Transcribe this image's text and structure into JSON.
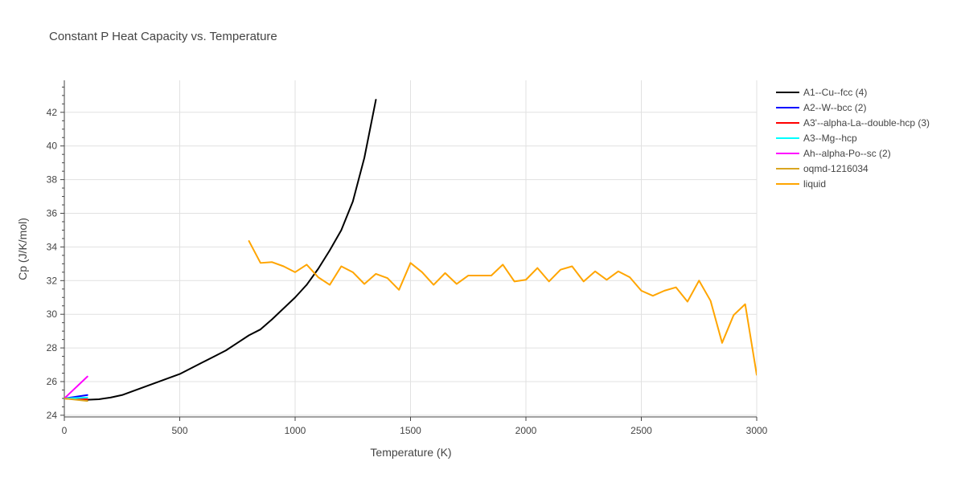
{
  "chart_data": {
    "type": "line",
    "title": "Constant P Heat Capacity vs. Temperature",
    "xlabel": "Temperature (K)",
    "ylabel": "Cp (J/K/mol)",
    "xlim": [
      0,
      3000
    ],
    "ylim": [
      23.9,
      43.9
    ],
    "xticks": [
      0,
      500,
      1000,
      1500,
      2000,
      2500,
      3000
    ],
    "yticks": [
      24,
      26,
      28,
      30,
      32,
      34,
      36,
      38,
      40,
      42
    ],
    "grid": true,
    "legend_position": "right",
    "series": [
      {
        "name": "A1--Cu--fcc (4)",
        "color": "#000000",
        "x": [
          0,
          50,
          100,
          150,
          200,
          250,
          300,
          350,
          400,
          450,
          500,
          550,
          600,
          650,
          700,
          750,
          800,
          850,
          900,
          950,
          1000,
          1050,
          1100,
          1150,
          1200,
          1250,
          1300,
          1350
        ],
        "y": [
          25.0,
          24.95,
          24.92,
          24.95,
          25.05,
          25.2,
          25.45,
          25.7,
          25.95,
          26.2,
          26.45,
          26.8,
          27.15,
          27.5,
          27.85,
          28.3,
          28.75,
          29.1,
          29.7,
          30.35,
          31.0,
          31.75,
          32.7,
          33.8,
          35.0,
          36.7,
          39.3,
          42.75
        ]
      },
      {
        "name": "A2--W--bcc (2)",
        "color": "#0000ff",
        "x": [
          0,
          100
        ],
        "y": [
          25.0,
          25.2
        ]
      },
      {
        "name": "A3'--alpha-La--double-hcp (3)",
        "color": "#ff0000",
        "x": [
          0,
          100
        ],
        "y": [
          25.0,
          24.95
        ]
      },
      {
        "name": "A3--Mg--hcp",
        "color": "#00ffff",
        "x": [
          0,
          100
        ],
        "y": [
          25.0,
          25.05
        ]
      },
      {
        "name": "Ah--alpha-Po--sc (2)",
        "color": "#ff00ff",
        "x": [
          0,
          100
        ],
        "y": [
          25.0,
          26.3
        ]
      },
      {
        "name": "oqmd-1216034",
        "color": "#daa520",
        "x": [
          0,
          100
        ],
        "y": [
          25.0,
          24.85
        ]
      },
      {
        "name": "liquid",
        "color": "#ffa500",
        "x": [
          800,
          850,
          900,
          950,
          1000,
          1050,
          1100,
          1150,
          1200,
          1250,
          1300,
          1350,
          1400,
          1450,
          1500,
          1550,
          1600,
          1650,
          1700,
          1750,
          1800,
          1850,
          1900,
          1950,
          2000,
          2050,
          2100,
          2150,
          2200,
          2250,
          2300,
          2350,
          2400,
          2450,
          2500,
          2550,
          2600,
          2650,
          2700,
          2750,
          2800,
          2850,
          2900,
          2950,
          3000
        ],
        "y": [
          34.35,
          33.05,
          33.1,
          32.85,
          32.5,
          32.95,
          32.2,
          31.75,
          32.85,
          32.5,
          31.8,
          32.4,
          32.15,
          31.45,
          33.05,
          32.5,
          31.75,
          32.45,
          31.8,
          32.3,
          32.3,
          32.3,
          32.95,
          31.95,
          32.05,
          32.75,
          31.95,
          32.65,
          32.85,
          31.95,
          32.55,
          32.05,
          32.55,
          32.2,
          31.4,
          31.1,
          31.4,
          31.6,
          30.75,
          32.0,
          30.8,
          28.3,
          29.95,
          30.6,
          26.4
        ]
      }
    ]
  }
}
